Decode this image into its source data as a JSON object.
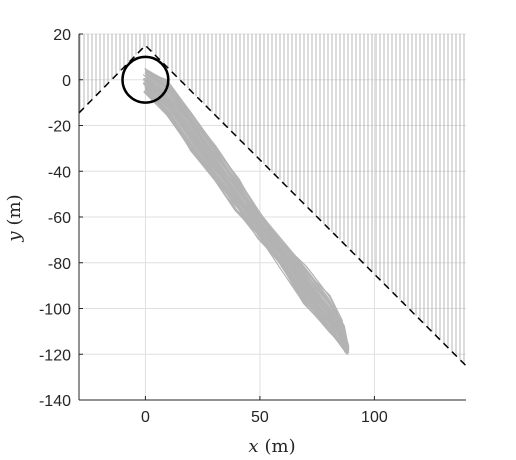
{
  "chart_data": {
    "type": "line",
    "title": "",
    "xlabel_var": "x",
    "xlabel_unit": "(m)",
    "ylabel_var": "y",
    "ylabel_unit": "(m)",
    "xlim": [
      -29,
      140
    ],
    "ylim": [
      -140,
      20
    ],
    "xticks": [
      0,
      50,
      100
    ],
    "xtick_labels": [
      "0",
      "50",
      "100"
    ],
    "yticks": [
      20,
      0,
      -20,
      -40,
      -60,
      -80,
      -100,
      -120,
      -140
    ],
    "ytick_labels": [
      "20",
      "0",
      "-20",
      "-40",
      "-60",
      "-80",
      "-100",
      "-120",
      "-140"
    ],
    "grid": true,
    "colors": {
      "trajectories": "#b3b3b3",
      "hatch": "#a6a6a6",
      "boundary": "#000000",
      "circle": "#000000",
      "axis": "#262626",
      "grid": "#e0e0e0"
    },
    "boundary": {
      "style": "dashed",
      "x": [
        -29,
        0,
        140
      ],
      "y": [
        -14.5,
        15,
        -125
      ]
    },
    "shaded_region": "above boundary (vertical hatch)",
    "circle": {
      "center": [
        0,
        0
      ],
      "radius": 10
    },
    "trajectory_band": {
      "x": [
        0,
        10,
        20,
        30,
        40,
        50,
        60,
        70,
        80,
        86,
        88
      ],
      "y_min": [
        -5,
        -16,
        -30,
        -43,
        -56,
        -69,
        -82,
        -97,
        -109,
        -116,
        -119
      ],
      "y_max": [
        5,
        -1,
        -14,
        -28,
        -43,
        -58,
        -70,
        -82,
        -95,
        -106,
        -117
      ]
    },
    "trajectory_count": 40
  }
}
